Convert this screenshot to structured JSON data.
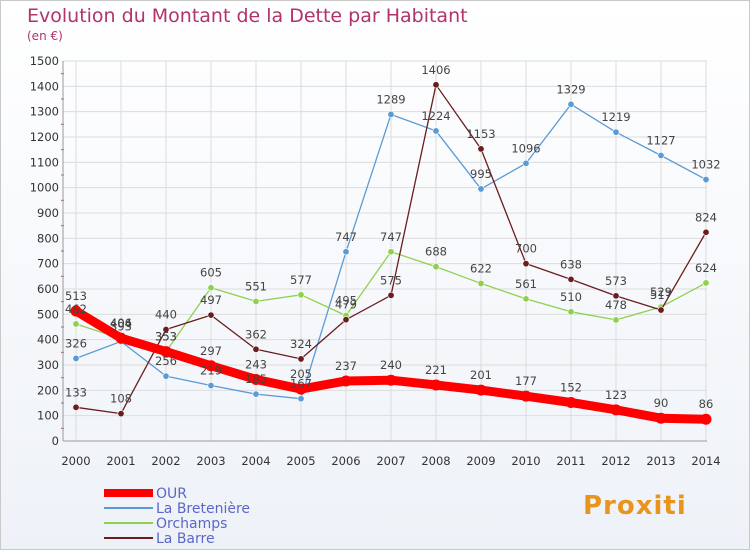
{
  "title": "Evolution du Montant de la Dette par Habitant",
  "unit_label": "(en €)",
  "logo_text": "Proxiti",
  "chart_data": {
    "type": "line",
    "title": "Evolution du Montant de la Dette par Habitant",
    "subtitle": "(en €)",
    "xlabel": "",
    "ylabel": "",
    "x": [
      "2000",
      "2001",
      "2002",
      "2003",
      "2004",
      "2005",
      "2006",
      "2007",
      "2008",
      "2009",
      "2010",
      "2011",
      "2012",
      "2013",
      "2014"
    ],
    "ylim": [
      0,
      1500
    ],
    "yticks": [
      0,
      100,
      200,
      300,
      400,
      500,
      600,
      700,
      800,
      900,
      1000,
      1100,
      1200,
      1300,
      1400,
      1500
    ],
    "grid": true,
    "legend_position": "bottom-left",
    "series": [
      {
        "name": "La Bretenière",
        "color": "#5b9bd5",
        "values": [
          326,
          393,
          256,
          219,
          185,
          167,
          747,
          1289,
          1224,
          995,
          1096,
          1329,
          1219,
          1127,
          1032
        ]
      },
      {
        "name": "Orchamps",
        "color": "#8fd14f",
        "values": [
          462,
          404,
          353,
          605,
          551,
          577,
          495,
          747,
          688,
          622,
          561,
          510,
          478,
          529,
          624
        ]
      },
      {
        "name": "La Barre",
        "color": "#6b1d1d",
        "values": [
          133,
          108,
          440,
          497,
          362,
          324,
          479,
          575,
          1406,
          1153,
          700,
          638,
          573,
          517,
          824
        ]
      },
      {
        "name": "OUR",
        "color": "#ff0000",
        "values": [
          513,
          406,
          353,
          297,
          243,
          205,
          237,
          240,
          221,
          201,
          177,
          152,
          123,
          90,
          86
        ]
      }
    ],
    "data_labels": [
      {
        "series": "La Bretenière",
        "values": [
          "326",
          "393",
          "256",
          "219",
          "185",
          "167",
          "747",
          "1289",
          "1224",
          "995",
          "1096",
          "1329",
          "1219",
          "1127",
          "1032"
        ]
      },
      {
        "series": "Orchamps",
        "values": [
          "462",
          "404",
          "353",
          "605",
          "551",
          "577",
          "495",
          "747",
          "688",
          "622",
          "561",
          "510",
          "478",
          "529",
          "624"
        ]
      },
      {
        "series": "La Barre",
        "values": [
          "133",
          "108",
          "440",
          "497",
          "362",
          "324",
          "479",
          "575",
          "1406",
          "1153",
          "700",
          "638",
          "573",
          "517",
          "824"
        ]
      },
      {
        "series": "OUR",
        "values": [
          "513",
          "406",
          "353",
          "297",
          "243",
          "205",
          "237",
          "240",
          "221",
          "201",
          "177",
          "152",
          "123",
          "90",
          "86"
        ]
      }
    ]
  }
}
